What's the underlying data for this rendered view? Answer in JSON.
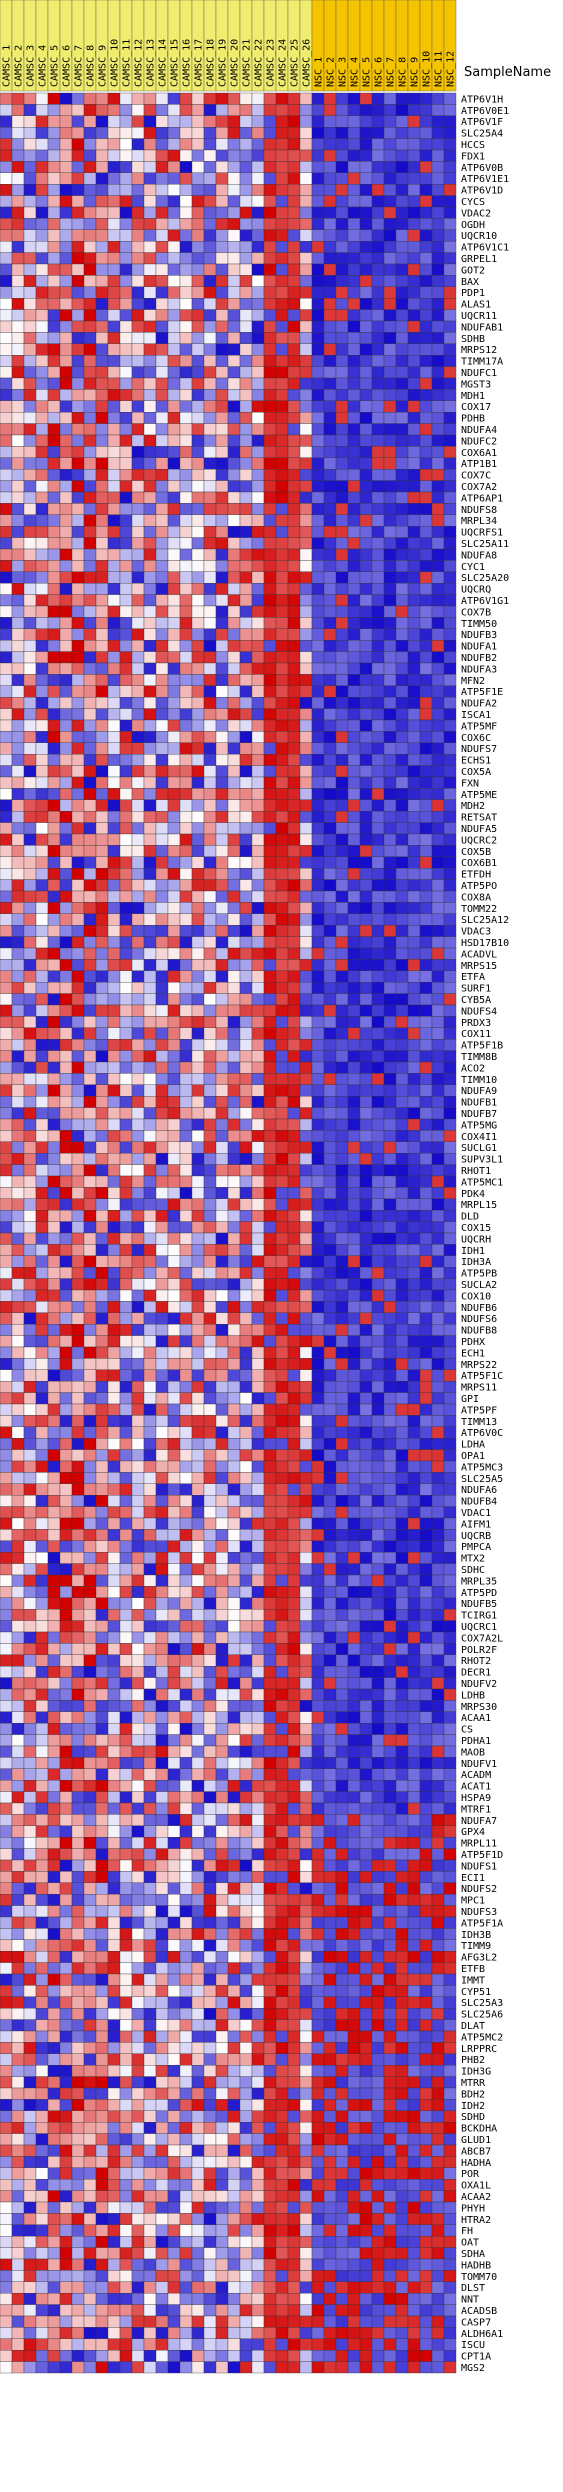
{
  "chart_data": {
    "type": "heatmap",
    "header_label": "SampleName",
    "samples": [
      {
        "name": "CAMSC_1",
        "group": "CAMSC"
      },
      {
        "name": "CAMSC_2",
        "group": "CAMSC"
      },
      {
        "name": "CAMSC_3",
        "group": "CAMSC"
      },
      {
        "name": "CAMSC_4",
        "group": "CAMSC"
      },
      {
        "name": "CAMSC_5",
        "group": "CAMSC"
      },
      {
        "name": "CAMSC_6",
        "group": "CAMSC"
      },
      {
        "name": "CAMSC_7",
        "group": "CAMSC"
      },
      {
        "name": "CAMSC_8",
        "group": "CAMSC"
      },
      {
        "name": "CAMSC_9",
        "group": "CAMSC"
      },
      {
        "name": "CAMSC_10",
        "group": "CAMSC"
      },
      {
        "name": "CAMSC_11",
        "group": "CAMSC"
      },
      {
        "name": "CAMSC_12",
        "group": "CAMSC"
      },
      {
        "name": "CAMSC_13",
        "group": "CAMSC"
      },
      {
        "name": "CAMSC_14",
        "group": "CAMSC"
      },
      {
        "name": "CAMSC_15",
        "group": "CAMSC"
      },
      {
        "name": "CAMSC_16",
        "group": "CAMSC"
      },
      {
        "name": "CAMSC_17",
        "group": "CAMSC"
      },
      {
        "name": "CAMSC_18",
        "group": "CAMSC"
      },
      {
        "name": "CAMSC_19",
        "group": "CAMSC"
      },
      {
        "name": "CAMSC_20",
        "group": "CAMSC"
      },
      {
        "name": "CAMSC_21",
        "group": "CAMSC"
      },
      {
        "name": "CAMSC_22",
        "group": "CAMSC"
      },
      {
        "name": "CAMSC_23",
        "group": "CAMSC"
      },
      {
        "name": "CAMSC_24",
        "group": "CAMSC"
      },
      {
        "name": "CAMSC_25",
        "group": "CAMSC"
      },
      {
        "name": "CAMSC_26",
        "group": "CAMSC"
      },
      {
        "name": "NSC_1",
        "group": "NSC"
      },
      {
        "name": "NSC_2",
        "group": "NSC"
      },
      {
        "name": "NSC_3",
        "group": "NSC"
      },
      {
        "name": "NSC_4",
        "group": "NSC"
      },
      {
        "name": "NSC_5",
        "group": "NSC"
      },
      {
        "name": "NSC_6",
        "group": "NSC"
      },
      {
        "name": "NSC_7",
        "group": "NSC"
      },
      {
        "name": "NSC_8",
        "group": "NSC"
      },
      {
        "name": "NSC_9",
        "group": "NSC"
      },
      {
        "name": "NSC_10",
        "group": "NSC"
      },
      {
        "name": "NSC_11",
        "group": "NSC"
      },
      {
        "name": "NSC_12",
        "group": "NSC"
      }
    ],
    "genes": [
      "ATP6V1H",
      "ATP6V0E1",
      "ATP6V1F",
      "SLC25A4",
      "HCCS",
      "FDX1",
      "ATP6V0B",
      "ATP6V1E1",
      "ATP6V1D",
      "CYCS",
      "VDAC2",
      "OGDH",
      "UQCR10",
      "ATP6V1C1",
      "GRPEL1",
      "GOT2",
      "BAX",
      "PDP1",
      "ALAS1",
      "UQCR11",
      "NDUFAB1",
      "SDHB",
      "MRPS12",
      "TIMM17A",
      "NDUFC1",
      "MGST3",
      "MDH1",
      "COX17",
      "PDHB",
      "NDUFA4",
      "NDUFC2",
      "COX6A1",
      "ATP1B1",
      "COX7C",
      "COX7A2",
      "ATP6AP1",
      "NDUFS8",
      "MRPL34",
      "UQCRFS1",
      "SLC25A11",
      "NDUFA8",
      "CYC1",
      "SLC25A20",
      "UQCRQ",
      "ATP6V1G1",
      "COX7B",
      "TIMM50",
      "NDUFB3",
      "NDUFA1",
      "NDUFB2",
      "NDUFA3",
      "MFN2",
      "ATP5F1E",
      "NDUFA2",
      "ISCA1",
      "ATP5MF",
      "COX6C",
      "NDUFS7",
      "ECHS1",
      "COX5A",
      "FXN",
      "ATP5ME",
      "MDH2",
      "RETSAT",
      "NDUFA5",
      "UQCRC2",
      "COX5B",
      "COX6B1",
      "ETFDH",
      "ATP5PO",
      "COX8A",
      "TOMM22",
      "SLC25A12",
      "VDAC3",
      "HSD17B10",
      "ACADVL",
      "MRPS15",
      "ETFA",
      "SURF1",
      "CYB5A",
      "NDUFS4",
      "PRDX3",
      "COX11",
      "ATP5F1B",
      "TIMM8B",
      "ACO2",
      "TIMM10",
      "NDUFA9",
      "NDUFB1",
      "NDUFB7",
      "ATP5MG",
      "COX4I1",
      "SUCLG1",
      "SUPV3L1",
      "RHOT1",
      "ATP5MC1",
      "PDK4",
      "MRPL15",
      "DLD",
      "COX15",
      "UQCRH",
      "IDH1",
      "IDH3A",
      "ATP5PB",
      "SUCLA2",
      "COX10",
      "NDUFB6",
      "NDUFS6",
      "NDUFB8",
      "PDHX",
      "ECH1",
      "MRPS22",
      "ATP5F1C",
      "MRPS11",
      "GPI",
      "ATP5PF",
      "TIMM13",
      "ATP6V0C",
      "LDHA",
      "OPA1",
      "ATP5MC3",
      "SLC25A5",
      "NDUFA6",
      "NDUFB4",
      "VDAC1",
      "AIFM1",
      "UQCRB",
      "PMPCA",
      "MTX2",
      "SDHC",
      "MRPL35",
      "ATP5PD",
      "NDUFB5",
      "TCIRG1",
      "UQCRC1",
      "COX7A2L",
      "POLR2F",
      "RHOT2",
      "DECR1",
      "NDUFV2",
      "LDHB",
      "MRPS30",
      "ACAA1",
      "CS",
      "PDHA1",
      "MAOB",
      "NDUFV1",
      "ACADM",
      "ACAT1",
      "HSPA9",
      "MTRF1",
      "NDUFA7",
      "GPX4",
      "MRPL11",
      "ATP5F1D",
      "NDUFS1",
      "ECI1",
      "NDUFS2",
      "MPC1",
      "NDUFS3",
      "ATP5F1A",
      "IDH3B",
      "TIMM9",
      "AFG3L2",
      "ETFB",
      "IMMT",
      "CYP51",
      "SLC25A3",
      "SLC25A6",
      "DLAT",
      "ATP5MC2",
      "LRPPRC",
      "PHB2",
      "IDH3G",
      "MTRR",
      "BDH2",
      "IDH2",
      "SDHD",
      "BCKDHA",
      "GLUD1",
      "ABCB7",
      "HADHA",
      "POR",
      "OXA1L",
      "ACAA2",
      "PHYH",
      "HTRA2",
      "FH",
      "OAT",
      "SDHA",
      "HADHB",
      "TOMM70",
      "DLST",
      "NNT",
      "ACADSB",
      "CASP7",
      "ALDH6A1",
      "ISCU",
      "CPT1A",
      "MGS2"
    ]
  }
}
